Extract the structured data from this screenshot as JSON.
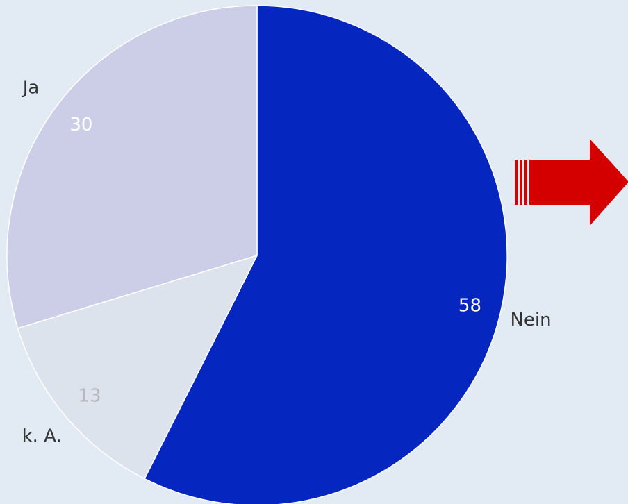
{
  "chart_data": {
    "type": "pie",
    "categories": [
      "Nein",
      "k. A.",
      "Ja"
    ],
    "values": [
      58,
      13,
      30
    ],
    "colors": [
      "#0527c0",
      "#dde3ec",
      "#cccde6"
    ],
    "value_label_colors": [
      "#ffffff",
      "#b5b8bd",
      "#ffffff"
    ]
  }
}
